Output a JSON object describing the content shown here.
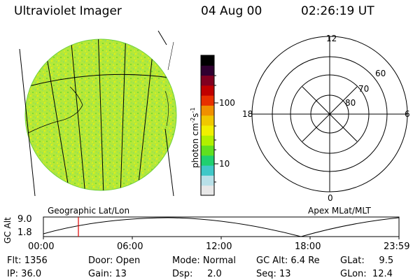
{
  "header": {
    "instrument": "Ultraviolet Imager",
    "date": "04 Aug 00",
    "time": "02:26:19 UT"
  },
  "colorbar": {
    "unit_label": "photon cm",
    "unit_sup1": "-2",
    "unit_s": "s",
    "unit_sup2": "-1",
    "tick_high": "100",
    "tick_low": "10",
    "colors": [
      "#e8e8e8",
      "#b8e0e8",
      "#40c8c8",
      "#20d070",
      "#60e020",
      "#b0f000",
      "#f0f000",
      "#f0c800",
      "#f09000",
      "#e83000",
      "#c00000",
      "#800020",
      "#300030",
      "#000000"
    ]
  },
  "left_panel": {
    "label": "Geographic Lat/Lon"
  },
  "polar": {
    "label": "Apex MLat/MLT",
    "mlt_labels": {
      "top": "12",
      "bottom": "0",
      "left": "18",
      "right": "6"
    },
    "lat_labels": [
      "60",
      "70",
      "80"
    ]
  },
  "alt_plot": {
    "ylabel": "GC Alt",
    "ytick_high": "9.0",
    "ytick_low": "1.8",
    "xticks": [
      "00:00",
      "06:00",
      "12:00",
      "18:00",
      "23:59"
    ],
    "marker_time": "02:26"
  },
  "footer": {
    "flt": "Flt: 1356",
    "ip": "IP: 36.0",
    "door": "Door: Open",
    "gain": "Gain: 13",
    "mode": "Mode: Normal",
    "dsp": "Dsp:     2.0",
    "gcalt": "GC Alt: 6.4 Re",
    "seq": "Seq: 13",
    "glat": "GLat:     9.5",
    "glon": "GLon:  12.4"
  }
}
